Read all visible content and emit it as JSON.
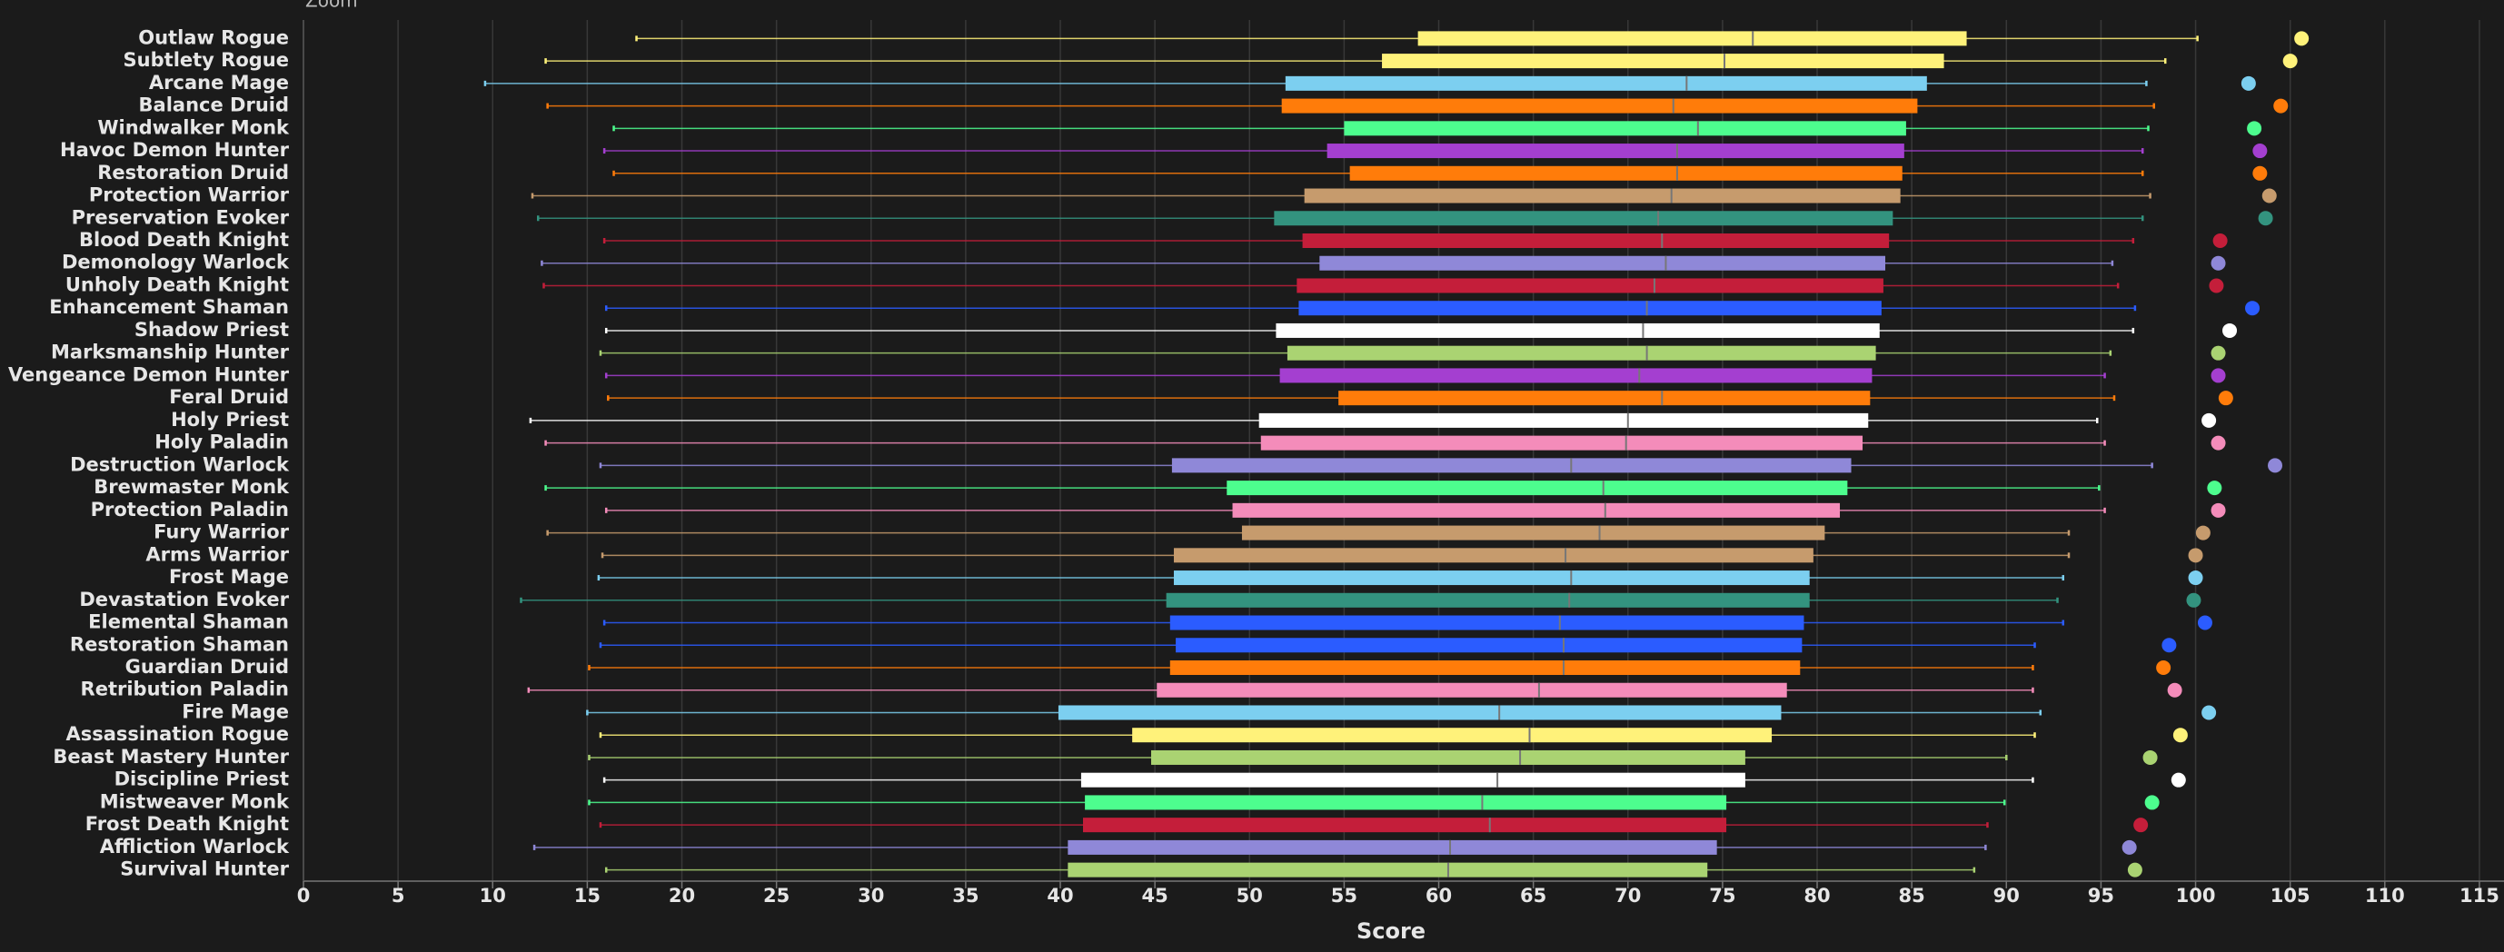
{
  "chart_data": {
    "type": "boxplot",
    "zoom_label": "Zoom",
    "xlabel": "Score",
    "categories": [
      "Outlaw Rogue",
      "Subtlety Rogue",
      "Arcane Mage",
      "Balance Druid",
      "Windwalker Monk",
      "Havoc Demon Hunter",
      "Restoration Druid",
      "Protection Warrior",
      "Preservation Evoker",
      "Blood Death Knight",
      "Demonology Warlock",
      "Unholy Death Knight",
      "Enhancement Shaman",
      "Shadow Priest",
      "Marksmanship Hunter",
      "Vengeance Demon Hunter",
      "Feral Druid",
      "Holy Priest",
      "Holy Paladin",
      "Destruction Warlock",
      "Brewmaster Monk",
      "Protection Paladin",
      "Fury Warrior",
      "Arms Warrior",
      "Frost Mage",
      "Devastation Evoker",
      "Elemental Shaman",
      "Restoration Shaman",
      "Guardian Druid",
      "Retribution Paladin",
      "Fire Mage",
      "Assassination Rogue",
      "Beast Mastery Hunter",
      "Discipline Priest",
      "Mistweaver Monk",
      "Frost Death Knight",
      "Affliction Warlock",
      "Survival Hunter"
    ],
    "colors": [
      "#fff27a",
      "#fff27a",
      "#7ccff0",
      "#ff7c0a",
      "#4dfd8e",
      "#a43fd0",
      "#ff7c0a",
      "#c69b6d",
      "#33937f",
      "#c41e3a",
      "#8f88d8",
      "#c41e3a",
      "#2b5cff",
      "#ffffff",
      "#aad372",
      "#a43fd0",
      "#ff7c0a",
      "#ffffff",
      "#f48cba",
      "#8f88d8",
      "#4dfd8e",
      "#f48cba",
      "#c69b6d",
      "#c69b6d",
      "#7ccff0",
      "#33937f",
      "#2b5cff",
      "#2b5cff",
      "#ff7c0a",
      "#f48cba",
      "#7ccff0",
      "#fff27a",
      "#aad372",
      "#ffffff",
      "#4dfd8e",
      "#c41e3a",
      "#8f88d8",
      "#aad372"
    ],
    "whisker_low": [
      17.6,
      12.8,
      9.6,
      12.9,
      16.4,
      15.9,
      16.4,
      12.1,
      12.4,
      15.9,
      12.6,
      12.7,
      16.0,
      16.0,
      15.7,
      16.0,
      16.1,
      12.0,
      12.8,
      15.7,
      12.8,
      16.0,
      12.9,
      15.8,
      15.6,
      11.5,
      15.9,
      15.7,
      15.1,
      11.9,
      15.0,
      15.7,
      15.1,
      15.9,
      15.1,
      15.7,
      12.2,
      16.0
    ],
    "q1": [
      58.9,
      57.0,
      51.9,
      51.7,
      55.0,
      54.1,
      55.3,
      52.9,
      51.3,
      52.8,
      53.7,
      52.5,
      52.6,
      51.4,
      52.0,
      51.6,
      54.7,
      50.5,
      50.6,
      45.9,
      48.8,
      49.1,
      49.6,
      46.0,
      46.0,
      45.6,
      45.8,
      46.1,
      45.8,
      45.1,
      39.9,
      43.8,
      44.8,
      41.1,
      41.3,
      41.2,
      40.4,
      40.4
    ],
    "median": [
      76.6,
      75.1,
      73.1,
      72.4,
      73.7,
      72.6,
      72.6,
      72.3,
      71.6,
      71.8,
      72.0,
      71.4,
      71.0,
      70.8,
      71.0,
      70.6,
      71.8,
      70.0,
      69.9,
      67.0,
      68.7,
      68.8,
      68.5,
      66.7,
      67.0,
      66.9,
      66.4,
      66.6,
      66.6,
      65.3,
      63.2,
      64.8,
      64.3,
      63.1,
      62.3,
      62.7,
      60.6,
      60.5
    ],
    "q3": [
      87.9,
      86.7,
      85.8,
      85.3,
      84.7,
      84.6,
      84.5,
      84.4,
      84.0,
      83.8,
      83.6,
      83.5,
      83.4,
      83.3,
      83.1,
      82.9,
      82.8,
      82.7,
      82.4,
      81.8,
      81.6,
      81.2,
      80.4,
      79.8,
      79.6,
      79.6,
      79.3,
      79.2,
      79.1,
      78.4,
      78.1,
      77.6,
      76.2,
      76.2,
      75.2,
      75.2,
      74.7,
      74.2
    ],
    "whisker_high": [
      100.1,
      98.4,
      97.4,
      97.8,
      97.5,
      97.2,
      97.2,
      97.6,
      97.2,
      96.7,
      95.6,
      95.9,
      96.8,
      96.7,
      95.5,
      95.2,
      95.7,
      94.8,
      95.2,
      97.7,
      94.9,
      95.2,
      93.3,
      93.3,
      93.0,
      92.7,
      93.0,
      91.5,
      91.4,
      91.4,
      91.8,
      91.5,
      90.0,
      91.4,
      89.9,
      89.0,
      88.9,
      88.3
    ],
    "points": [
      105.6,
      105.0,
      102.8,
      104.5,
      103.1,
      103.4,
      103.4,
      103.9,
      103.7,
      101.3,
      101.2,
      101.1,
      103.0,
      101.8,
      101.2,
      101.2,
      101.6,
      100.7,
      101.2,
      104.2,
      101.0,
      101.2,
      100.4,
      100.0,
      100.0,
      99.9,
      100.5,
      98.6,
      98.3,
      98.9,
      100.7,
      99.2,
      97.6,
      99.1,
      97.7,
      97.1,
      96.5,
      96.8
    ],
    "xlim": [
      0,
      116.3
    ],
    "xticks": [
      0,
      5,
      10,
      15,
      20,
      25,
      30,
      35,
      40,
      45,
      50,
      55,
      60,
      65,
      70,
      75,
      80,
      85,
      90,
      95,
      100,
      105,
      110,
      115
    ],
    "grid": true
  }
}
